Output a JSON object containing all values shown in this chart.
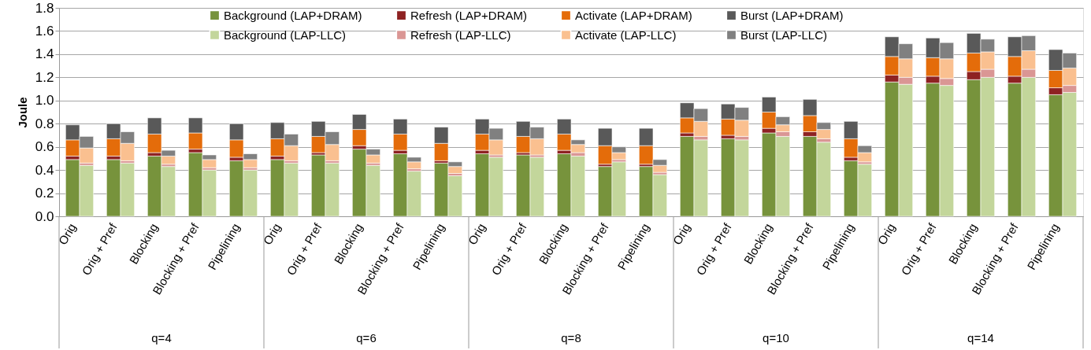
{
  "chart_data": {
    "type": "bar",
    "stacked": true,
    "ylabel": "Joule",
    "categories": [
      "Orig",
      null,
      "Orig + Pref",
      null,
      "Blocking",
      null,
      "Blocking + Pref",
      null,
      "Pipelining",
      null,
      "Orig",
      null,
      "Orig + Pref",
      null,
      "Blocking",
      null,
      "Blocking + Pref",
      null,
      "Pipelining",
      null,
      "Orig",
      null,
      "Orig + Pref",
      null,
      "Blocking",
      null,
      "Blocking + Pref",
      null,
      "Pipelining",
      null,
      "Orig",
      null,
      "Orig + Pref",
      null,
      "Blocking",
      null,
      "Blocking + Pref",
      null,
      "Pipelining",
      null,
      "Orig",
      null,
      "Orig + Pref",
      null,
      "Blocking",
      null,
      "Blocking + Pref",
      null,
      "Pipelining",
      null
    ],
    "annotations": [
      "q=4",
      "q=6",
      "q=8",
      "q=10",
      "q=14"
    ],
    "ylim": [
      0,
      1.8
    ],
    "yticks": [
      {
        "value": 0,
        "label": "0.0"
      },
      {
        "value": 0.2,
        "label": "0.2"
      },
      {
        "value": 0.4,
        "label": "0.4"
      },
      {
        "value": 0.6,
        "label": "0.6"
      },
      {
        "value": 0.8,
        "label": "0.8"
      },
      {
        "value": 1,
        "label": "1.0"
      },
      {
        "value": 1.2,
        "label": "1.2"
      },
      {
        "value": 1.4,
        "label": "1.4"
      },
      {
        "value": 1.6,
        "label": "1.6"
      },
      {
        "value": 1.8,
        "label": "1.8"
      }
    ],
    "grid": "y",
    "legend": "top",
    "series": [
      {
        "name": "Background (LAP+DRAM)",
        "color": "#77933c",
        "values": [
          0.49,
          null,
          0.49,
          null,
          0.52,
          null,
          0.55,
          null,
          0.48,
          null,
          0.49,
          null,
          0.53,
          null,
          0.58,
          null,
          0.54,
          null,
          0.46,
          null,
          0.54,
          null,
          0.53,
          null,
          0.54,
          null,
          0.43,
          null,
          0.43,
          null,
          0.69,
          null,
          0.67,
          null,
          0.72,
          null,
          0.69,
          null,
          0.48,
          null,
          1.16,
          null,
          1.15,
          null,
          1.18,
          null,
          1.15,
          null,
          1.05,
          null
        ]
      },
      {
        "name": "Refresh (LAP+DRAM)",
        "color": "#8e2222",
        "values": [
          0.03,
          null,
          0.03,
          null,
          0.03,
          null,
          0.03,
          null,
          0.03,
          null,
          0.03,
          null,
          0.02,
          null,
          0.03,
          null,
          0.03,
          null,
          0.02,
          null,
          0.03,
          null,
          0.02,
          null,
          0.03,
          null,
          0.02,
          null,
          0.02,
          null,
          0.03,
          null,
          0.03,
          null,
          0.04,
          null,
          0.04,
          null,
          0.03,
          null,
          0.06,
          null,
          0.06,
          null,
          0.07,
          null,
          0.06,
          null,
          0.06,
          null
        ]
      },
      {
        "name": "Activate (LAP+DRAM)",
        "color": "#e46c0a",
        "values": [
          0.14,
          null,
          0.15,
          null,
          0.16,
          null,
          0.14,
          null,
          0.15,
          null,
          0.15,
          null,
          0.14,
          null,
          0.14,
          null,
          0.14,
          null,
          0.15,
          null,
          0.14,
          null,
          0.14,
          null,
          0.14,
          null,
          0.16,
          null,
          0.16,
          null,
          0.13,
          null,
          0.14,
          null,
          0.14,
          null,
          0.14,
          null,
          0.16,
          null,
          0.16,
          null,
          0.16,
          null,
          0.16,
          null,
          0.17,
          null,
          0.15,
          null
        ]
      },
      {
        "name": "Burst (LAP+DRAM)",
        "color": "#595959",
        "values": [
          0.13,
          null,
          0.13,
          null,
          0.14,
          null,
          0.13,
          null,
          0.14,
          null,
          0.14,
          null,
          0.13,
          null,
          0.13,
          null,
          0.13,
          null,
          0.14,
          null,
          0.13,
          null,
          0.13,
          null,
          0.13,
          null,
          0.15,
          null,
          0.15,
          null,
          0.13,
          null,
          0.13,
          null,
          0.13,
          null,
          0.14,
          null,
          0.15,
          null,
          0.17,
          null,
          0.17,
          null,
          0.17,
          null,
          0.17,
          null,
          0.18,
          null
        ]
      },
      {
        "name": "Background (LAP-LLC)",
        "color": "#c3d69b",
        "values": [
          null,
          0.44,
          null,
          0.46,
          null,
          0.43,
          null,
          0.4,
          null,
          0.4,
          null,
          0.46,
          null,
          0.46,
          null,
          0.44,
          null,
          0.39,
          null,
          0.35,
          null,
          0.51,
          null,
          0.51,
          null,
          0.52,
          null,
          0.47,
          null,
          0.36,
          null,
          0.66,
          null,
          0.66,
          null,
          0.69,
          null,
          0.64,
          null,
          0.45,
          null,
          1.14,
          null,
          1.13,
          null,
          1.2,
          null,
          1.2,
          null,
          1.07
        ]
      },
      {
        "name": "Refresh (LAP-LLC)",
        "color": "#da9694",
        "values": [
          null,
          0.02,
          null,
          0.02,
          null,
          0.02,
          null,
          0.02,
          null,
          0.02,
          null,
          0.02,
          null,
          0.02,
          null,
          0.02,
          null,
          0.02,
          null,
          0.02,
          null,
          0.02,
          null,
          0.02,
          null,
          0.03,
          null,
          0.02,
          null,
          0.02,
          null,
          0.03,
          null,
          0.03,
          null,
          0.04,
          null,
          0.03,
          null,
          0.02,
          null,
          0.06,
          null,
          0.06,
          null,
          0.07,
          null,
          0.07,
          null,
          0.06
        ]
      },
      {
        "name": "Activate (LAP-LLC)",
        "color": "#fac090",
        "values": [
          null,
          0.13,
          null,
          0.15,
          null,
          0.07,
          null,
          0.07,
          null,
          0.07,
          null,
          0.13,
          null,
          0.14,
          null,
          0.07,
          null,
          0.06,
          null,
          0.06,
          null,
          0.13,
          null,
          0.14,
          null,
          0.07,
          null,
          0.06,
          null,
          0.06,
          null,
          0.13,
          null,
          0.14,
          null,
          0.06,
          null,
          0.08,
          null,
          0.08,
          null,
          0.16,
          null,
          0.17,
          null,
          0.15,
          null,
          0.16,
          null,
          0.15
        ]
      },
      {
        "name": "Burst (LAP-LLC)",
        "color": "#808080",
        "values": [
          null,
          0.1,
          null,
          0.1,
          null,
          0.05,
          null,
          0.04,
          null,
          0.05,
          null,
          0.1,
          null,
          0.11,
          null,
          0.05,
          null,
          0.04,
          null,
          0.04,
          null,
          0.1,
          null,
          0.1,
          null,
          0.04,
          null,
          0.05,
          null,
          0.05,
          null,
          0.11,
          null,
          0.11,
          null,
          0.07,
          null,
          0.06,
          null,
          0.06,
          null,
          0.13,
          null,
          0.14,
          null,
          0.11,
          null,
          0.13,
          null,
          0.13
        ]
      }
    ]
  }
}
